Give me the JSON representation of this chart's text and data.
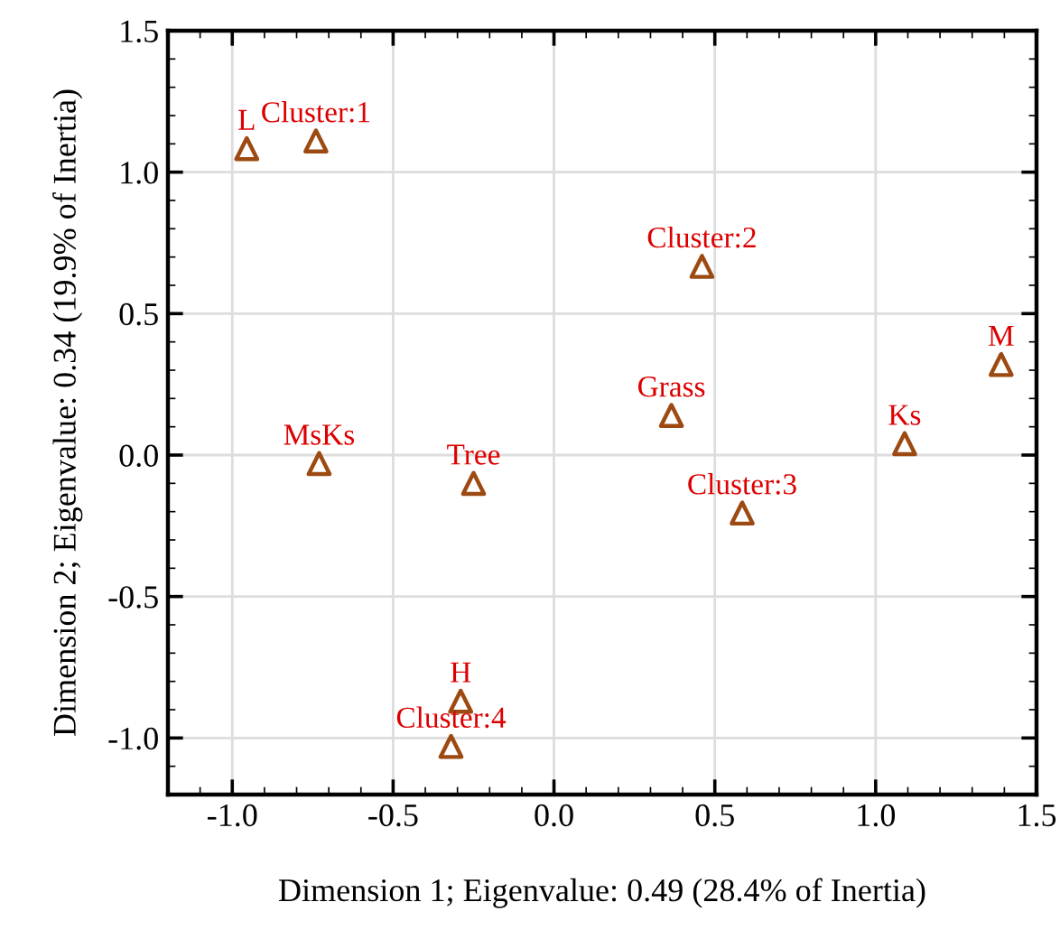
{
  "chart_data": {
    "type": "scatter",
    "xlabel": "Dimension 1; Eigenvalue: 0.49 (28.4% of Inertia)",
    "ylabel": "Dimension 2; Eigenvalue: 0.34 (19.9% of Inertia)",
    "xlim": [
      -1.2,
      1.5
    ],
    "ylim": [
      -1.2,
      1.5
    ],
    "xticks": [
      {
        "value": -1.0,
        "label": "-1.0"
      },
      {
        "value": -0.5,
        "label": "-0.5"
      },
      {
        "value": 0.0,
        "label": "0.0"
      },
      {
        "value": 0.5,
        "label": "0.5"
      },
      {
        "value": 1.0,
        "label": "1.0"
      },
      {
        "value": 1.5,
        "label": "1.5"
      }
    ],
    "yticks": [
      {
        "value": -1.0,
        "label": "-1.0"
      },
      {
        "value": -0.5,
        "label": "-0.5"
      },
      {
        "value": 0.0,
        "label": "0.0"
      },
      {
        "value": 0.5,
        "label": "0.5"
      },
      {
        "value": 1.0,
        "label": "1.0"
      },
      {
        "value": 1.5,
        "label": "1.5"
      }
    ],
    "grid": true,
    "marker": "triangle",
    "series": [
      {
        "color": "#9c4a12",
        "x": [
          -0.74,
          0.46,
          0.585,
          -0.32,
          -0.955,
          1.39,
          -0.29,
          0.365,
          -0.25,
          -0.73,
          1.09
        ],
        "values": [
          1.11,
          0.667,
          -0.205,
          -1.03,
          1.083,
          0.32,
          -0.87,
          0.14,
          -0.1,
          -0.03,
          0.04
        ]
      }
    ],
    "annotations": [
      {
        "text": "Cluster:1",
        "x": -0.74,
        "y": 1.11
      },
      {
        "text": "Cluster:2",
        "x": 0.46,
        "y": 0.667
      },
      {
        "text": "Cluster:3",
        "x": 0.585,
        "y": -0.205
      },
      {
        "text": "Cluster:4",
        "x": -0.32,
        "y": -1.03
      },
      {
        "text": "L",
        "x": -0.955,
        "y": 1.083
      },
      {
        "text": "M",
        "x": 1.39,
        "y": 0.32
      },
      {
        "text": "H",
        "x": -0.29,
        "y": -0.87
      },
      {
        "text": "Grass",
        "x": 0.365,
        "y": 0.14
      },
      {
        "text": "Tree",
        "x": -0.25,
        "y": -0.1
      },
      {
        "text": "MsKs",
        "x": -0.73,
        "y": -0.03
      },
      {
        "text": "Ks",
        "x": 1.09,
        "y": 0.04
      }
    ]
  }
}
